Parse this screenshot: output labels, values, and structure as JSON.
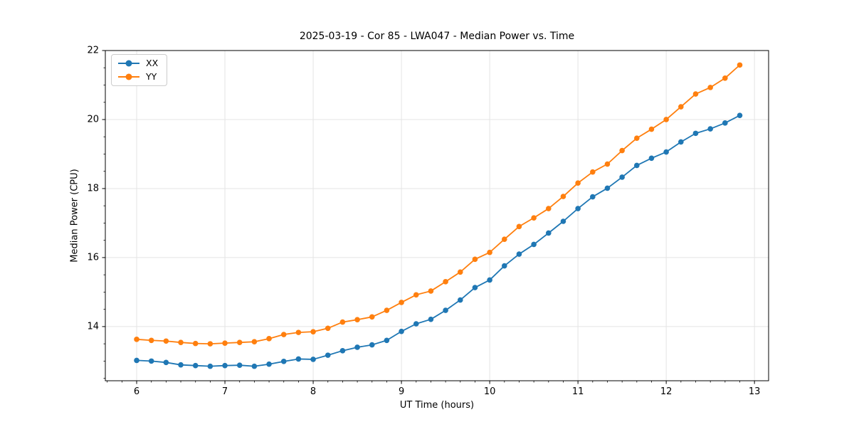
{
  "chart_data": {
    "type": "line",
    "title": "2025-03-19 - Cor 85 - LWA047 - Median Power vs. Time",
    "xlabel": "UT Time (hours)",
    "ylabel": "Median Power (CPU)",
    "x": [
      6.0,
      6.1667,
      6.3333,
      6.5,
      6.6667,
      6.8333,
      7.0,
      7.1667,
      7.3333,
      7.5,
      7.6667,
      7.8333,
      8.0,
      8.1667,
      8.3333,
      8.5,
      8.6667,
      8.8333,
      9.0,
      9.1667,
      9.3333,
      9.5,
      9.6667,
      9.8333,
      10.0,
      10.1667,
      10.3333,
      10.5,
      10.6667,
      10.8333,
      11.0,
      11.1667,
      11.3333,
      11.5,
      11.6667,
      11.8333,
      12.0,
      12.1667,
      12.3333,
      12.5,
      12.6667,
      12.8333
    ],
    "series": [
      {
        "name": "XX",
        "color": "#1f77b4",
        "values": [
          13.02,
          13.0,
          12.96,
          12.89,
          12.87,
          12.85,
          12.87,
          12.88,
          12.85,
          12.91,
          12.99,
          13.06,
          13.05,
          13.17,
          13.3,
          13.4,
          13.47,
          13.6,
          13.86,
          14.08,
          14.21,
          14.47,
          14.77,
          15.13,
          15.35,
          15.76,
          16.1,
          16.38,
          16.71,
          17.05,
          17.42,
          17.76,
          18.01,
          18.33,
          18.67,
          18.88,
          19.06,
          19.35,
          19.6,
          19.73,
          19.9,
          20.12
        ],
        "legend_label": "XX"
      },
      {
        "name": "YY",
        "color": "#ff7f0e",
        "values": [
          13.63,
          13.6,
          13.58,
          13.54,
          13.51,
          13.5,
          13.52,
          13.54,
          13.56,
          13.65,
          13.77,
          13.83,
          13.85,
          13.95,
          14.13,
          14.2,
          14.28,
          14.47,
          14.7,
          14.92,
          15.03,
          15.3,
          15.58,
          15.95,
          16.15,
          16.53,
          16.9,
          17.15,
          17.42,
          17.77,
          18.16,
          18.48,
          18.71,
          19.1,
          19.46,
          19.72,
          20.0,
          20.37,
          20.74,
          20.93,
          21.2,
          21.58
        ]
      }
    ],
    "xlim": [
      5.645,
      13.16
    ],
    "ylim": [
      12.43,
      22.0
    ],
    "xticks": [
      6,
      7,
      8,
      9,
      10,
      11,
      12,
      13
    ],
    "yticks": [
      14,
      16,
      18,
      20,
      22
    ],
    "x_minor_step": 0.16667,
    "y_minor_step": 0.5,
    "grid": true,
    "grid_color": "#e4e4e4",
    "spine_color": "#000000",
    "tick_color": "#000000",
    "legend_position": "upper-left",
    "marker": "circle",
    "marker_radius": 3.8,
    "line_width": 1.8
  }
}
